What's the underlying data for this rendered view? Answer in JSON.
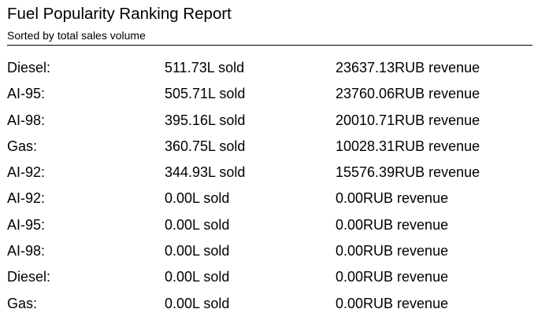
{
  "report": {
    "title": "Fuel Popularity Ranking Report",
    "subtitle": "Sorted by total sales volume"
  },
  "rows": [
    {
      "fuel": "Diesel:",
      "sold": "511.73L sold",
      "revenue": "23637.13RUB revenue"
    },
    {
      "fuel": "AI-95:",
      "sold": "505.71L sold",
      "revenue": "23760.06RUB revenue"
    },
    {
      "fuel": "AI-98:",
      "sold": "395.16L sold",
      "revenue": "20010.71RUB revenue"
    },
    {
      "fuel": "Gas:",
      "sold": "360.75L sold",
      "revenue": "10028.31RUB revenue"
    },
    {
      "fuel": "AI-92:",
      "sold": "344.93L sold",
      "revenue": "15576.39RUB revenue"
    },
    {
      "fuel": "AI-92:",
      "sold": "0.00L sold",
      "revenue": "0.00RUB revenue"
    },
    {
      "fuel": "AI-95:",
      "sold": "0.00L sold",
      "revenue": "0.00RUB revenue"
    },
    {
      "fuel": "AI-98:",
      "sold": "0.00L sold",
      "revenue": "0.00RUB revenue"
    },
    {
      "fuel": "Diesel:",
      "sold": "0.00L sold",
      "revenue": "0.00RUB revenue"
    },
    {
      "fuel": "Gas:",
      "sold": "0.00L sold",
      "revenue": "0.00RUB revenue"
    }
  ]
}
